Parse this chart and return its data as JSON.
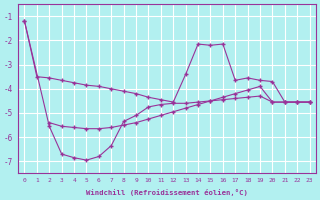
{
  "background_color": "#b2f0f0",
  "grid_color": "#ffffff",
  "line_color": "#993399",
  "xlabel": "Windchill (Refroidissement éolien,°C)",
  "line1_x": [
    0,
    1,
    2,
    3,
    4,
    5,
    6,
    7,
    8,
    9,
    10,
    11,
    12,
    13,
    14,
    15,
    16,
    17,
    18,
    19,
    20,
    21,
    22,
    23
  ],
  "line1_y": [
    -1.2,
    -3.5,
    -3.55,
    -3.65,
    -3.75,
    -3.85,
    -3.9,
    -4.0,
    -4.1,
    -4.2,
    -4.35,
    -4.45,
    -4.55,
    -3.4,
    -2.15,
    -2.2,
    -2.15,
    -3.65,
    -3.55,
    -3.65,
    -3.7,
    -4.55,
    -4.55,
    -4.55
  ],
  "line2_x": [
    0,
    2,
    3,
    4,
    5,
    6,
    7,
    8,
    9,
    10,
    11,
    12,
    13,
    14,
    15,
    16,
    17,
    18,
    19,
    20,
    21,
    22,
    23
  ],
  "line2_y": [
    -1.2,
    -5.55,
    -6.7,
    -6.85,
    -6.95,
    -6.8,
    -6.35,
    -5.35,
    -5.1,
    -4.75,
    -4.65,
    -4.6,
    -4.6,
    -4.55,
    -4.5,
    -4.45,
    -4.4,
    -4.35,
    -4.3,
    -4.55,
    -4.55,
    -4.55,
    -4.55
  ],
  "line3_x": [
    2,
    3,
    4,
    5,
    6,
    7,
    8,
    9,
    10,
    11,
    12,
    13,
    14,
    15,
    16,
    17,
    18,
    19,
    20,
    21,
    22,
    23
  ],
  "line3_y": [
    -5.4,
    -5.55,
    -5.6,
    -5.65,
    -5.65,
    -5.6,
    -5.5,
    -5.4,
    -5.25,
    -5.1,
    -4.95,
    -4.8,
    -4.65,
    -4.5,
    -4.35,
    -4.2,
    -4.05,
    -3.9,
    -4.55,
    -4.55,
    -4.55,
    -4.55
  ],
  "yticks": [
    -7,
    -6,
    -5,
    -4,
    -3,
    -2,
    -1
  ],
  "xticks": [
    0,
    1,
    2,
    3,
    4,
    5,
    6,
    7,
    8,
    9,
    10,
    11,
    12,
    13,
    14,
    15,
    16,
    17,
    18,
    19,
    20,
    21,
    22,
    23
  ],
  "ylim": [
    -7.5,
    -0.5
  ],
  "xlim": [
    -0.5,
    23.5
  ],
  "figsize": [
    3.2,
    2.0
  ],
  "dpi": 100
}
